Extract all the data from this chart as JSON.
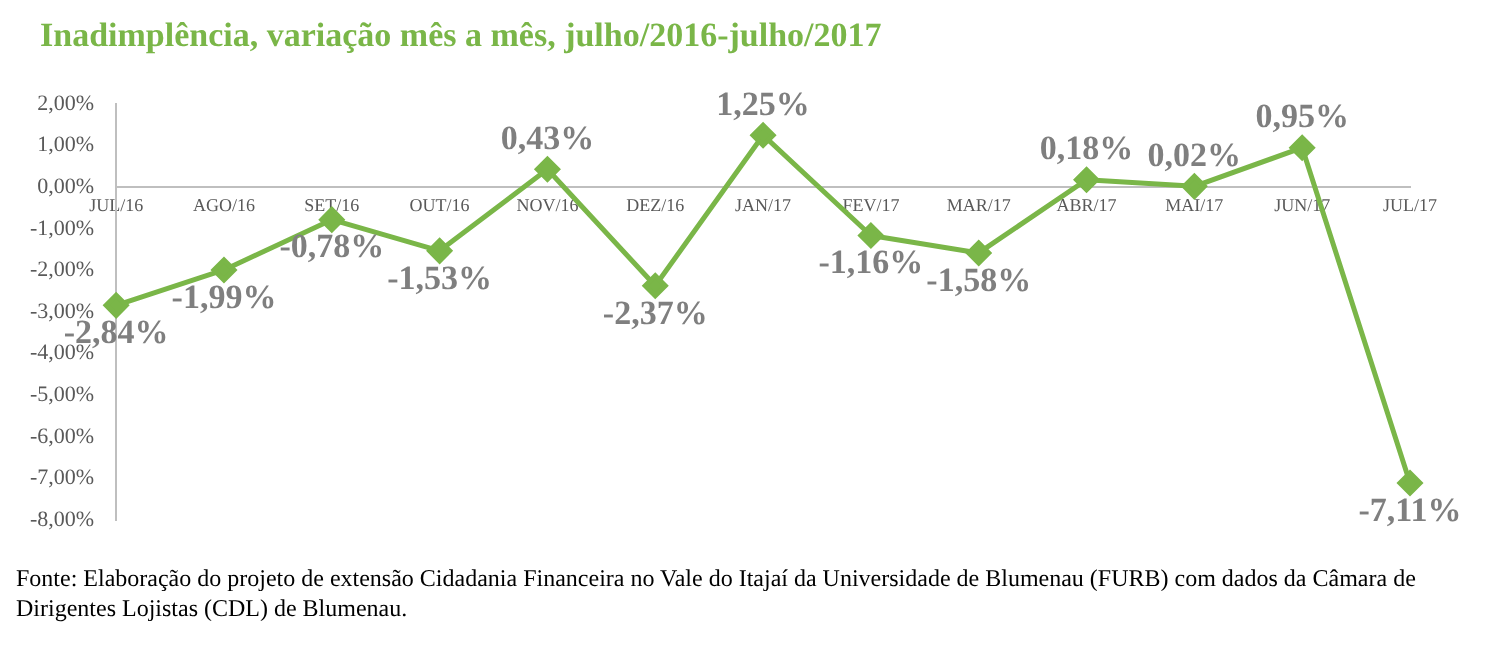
{
  "chart_data": {
    "type": "line",
    "title": "Inadimplência, variação mês a mês, julho/2016-julho/2017",
    "categories": [
      "JUL/16",
      "AGO/16",
      "SET/16",
      "OUT/16",
      "NOV/16",
      "DEZ/16",
      "JAN/17",
      "FEV/17",
      "MAR/17",
      "ABR/17",
      "MAI/17",
      "JUN/17",
      "JUL/17"
    ],
    "series": [
      {
        "color": "#7ab648",
        "values": [
          -2.84,
          -1.99,
          -0.78,
          -1.53,
          0.43,
          -2.37,
          1.25,
          -1.16,
          -1.58,
          0.18,
          0.02,
          0.95,
          -7.11
        ],
        "value_labels": [
          "-2,84%",
          "-1,99%",
          "-0,78%",
          "-1,53%",
          "0,43%",
          "-2,37%",
          "1,25%",
          "-1,16%",
          "-1,58%",
          "0,18%",
          "0,02%",
          "0,95%",
          "-7,11%"
        ]
      }
    ],
    "ylim": [
      -8,
      2
    ],
    "yticks": [
      {
        "value": 2,
        "label": "2,00%"
      },
      {
        "value": 1,
        "label": "1,00%"
      },
      {
        "value": 0,
        "label": "0,00%"
      },
      {
        "value": -1,
        "label": "-1,00%"
      },
      {
        "value": -2,
        "label": "-2,00%"
      },
      {
        "value": -3,
        "label": "-3,00%"
      },
      {
        "value": -4,
        "label": "-4,00%"
      },
      {
        "value": -5,
        "label": "-5,00%"
      },
      {
        "value": -6,
        "label": "-6,00%"
      },
      {
        "value": -7,
        "label": "-7,00%"
      },
      {
        "value": -8,
        "label": "-8,00%"
      }
    ],
    "grid": false,
    "legend": false,
    "marker": "diamond",
    "line_style": "solid",
    "annotations": [
      "Fonte: Elaboração do projeto de extensão Cidadania Financeira no Vale do Itajaí da Universidade de Blumenau (FURB) com dados da Câmara de Dirigentes Lojistas (CDL) de Blumenau."
    ]
  }
}
